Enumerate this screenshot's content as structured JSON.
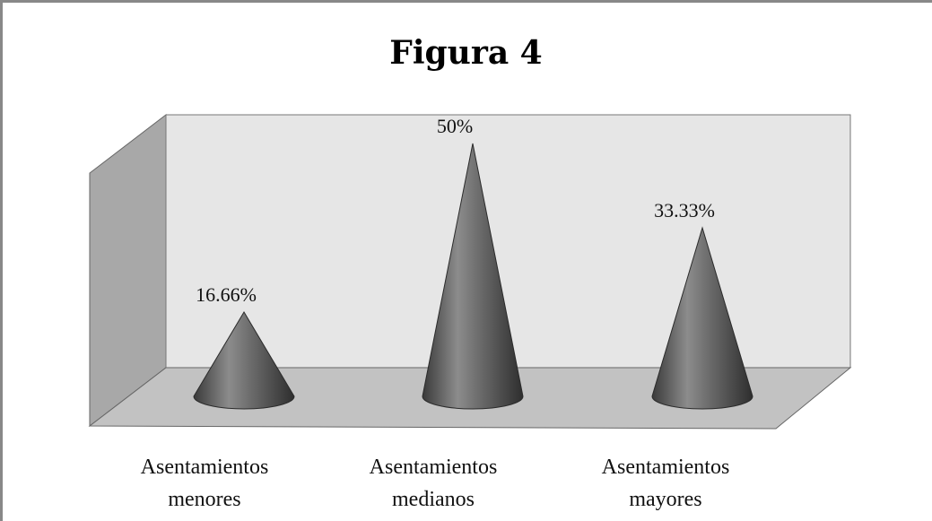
{
  "chart_data": {
    "type": "bar",
    "style": "3d-cone",
    "title": "Figura 4",
    "categories": [
      [
        "Asentamientos",
        "menores"
      ],
      [
        "Asentamientos",
        "medianos"
      ],
      [
        "Asentamientos",
        "mayores"
      ]
    ],
    "values": [
      16.66,
      50,
      33.33
    ],
    "data_labels": [
      "16.66%",
      "50%",
      "33.33%"
    ],
    "unit": "%",
    "ylim": [
      0,
      50
    ],
    "grid": false,
    "legend": false,
    "colors": {
      "cone": "#555555",
      "back_wall": "#e6e6e6",
      "side_wall": "#a8a8a8",
      "floor": "#c2c2c2",
      "frame": "#888888"
    }
  }
}
